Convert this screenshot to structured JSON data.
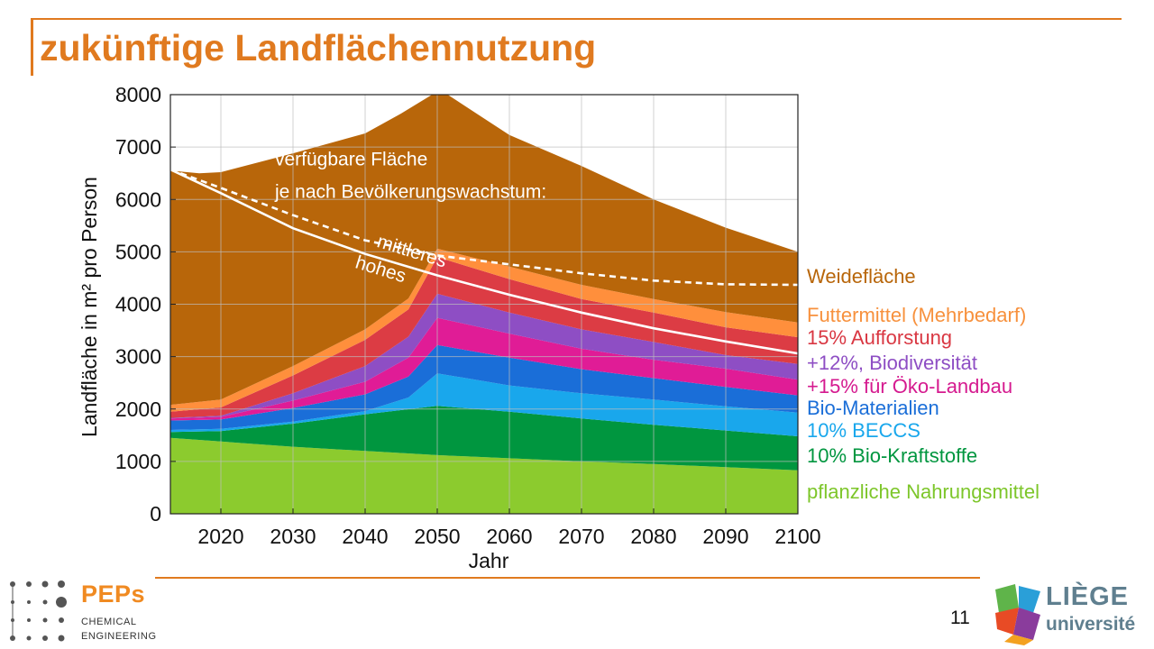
{
  "slide": {
    "title": "zukünftige Landflächennutzung",
    "page_number": "11"
  },
  "logos": {
    "peps": {
      "name": "PEPs",
      "line1": "CHEMICAL",
      "line2": "ENGINEERING"
    },
    "uliege": {
      "name": "LIÈGE",
      "sub": "université"
    }
  },
  "chart_data": {
    "type": "area",
    "xlabel": "Jahr",
    "ylabel": "Landfläche in m² pro Person",
    "xlim": [
      2013,
      2100
    ],
    "ylim": [
      0,
      8000
    ],
    "x_ticks": [
      2020,
      2030,
      2040,
      2050,
      2060,
      2070,
      2080,
      2090,
      2100
    ],
    "y_ticks": [
      0,
      1000,
      2000,
      3000,
      4000,
      5000,
      6000,
      7000,
      8000
    ],
    "grid": true,
    "stack_boundaries": [
      {
        "name": "pflanzliche Nahrungsmittel",
        "color": "#8ccb2e",
        "points": [
          [
            2013,
            1450
          ],
          [
            2020,
            1380
          ],
          [
            2030,
            1280
          ],
          [
            2040,
            1200
          ],
          [
            2050,
            1120
          ],
          [
            2060,
            1060
          ],
          [
            2070,
            1000
          ],
          [
            2080,
            950
          ],
          [
            2090,
            890
          ],
          [
            2100,
            830
          ]
        ]
      },
      {
        "name": "10% Bio-Kraftstoffe",
        "color": "#00963f",
        "points": [
          [
            2013,
            1560
          ],
          [
            2020,
            1580
          ],
          [
            2030,
            1720
          ],
          [
            2040,
            1900
          ],
          [
            2050,
            2060
          ],
          [
            2060,
            1950
          ],
          [
            2070,
            1820
          ],
          [
            2080,
            1700
          ],
          [
            2090,
            1590
          ],
          [
            2100,
            1480
          ]
        ]
      },
      {
        "name": "10% BECCS",
        "color": "#19a7ec",
        "points": [
          [
            2013,
            1600
          ],
          [
            2020,
            1620
          ],
          [
            2030,
            1760
          ],
          [
            2040,
            1960
          ],
          [
            2046,
            2220
          ],
          [
            2050,
            2680
          ],
          [
            2060,
            2450
          ],
          [
            2070,
            2300
          ],
          [
            2080,
            2180
          ],
          [
            2090,
            2050
          ],
          [
            2100,
            1930
          ]
        ]
      },
      {
        "name": "Bio-Materialien",
        "color": "#1a6ed8",
        "points": [
          [
            2013,
            1780
          ],
          [
            2020,
            1800
          ],
          [
            2030,
            2020
          ],
          [
            2040,
            2280
          ],
          [
            2046,
            2620
          ],
          [
            2050,
            3220
          ],
          [
            2060,
            2980
          ],
          [
            2070,
            2760
          ],
          [
            2080,
            2590
          ],
          [
            2090,
            2420
          ],
          [
            2100,
            2260
          ]
        ]
      },
      {
        "name": "+15% für Öko-Landbau",
        "color": "#e01c96",
        "points": [
          [
            2013,
            1820
          ],
          [
            2020,
            1850
          ],
          [
            2030,
            2160
          ],
          [
            2040,
            2520
          ],
          [
            2046,
            2980
          ],
          [
            2050,
            3740
          ],
          [
            2060,
            3440
          ],
          [
            2070,
            3150
          ],
          [
            2080,
            2940
          ],
          [
            2090,
            2770
          ],
          [
            2100,
            2560
          ]
        ]
      },
      {
        "name": "+12%, Biodiversität",
        "color": "#8e4ec4",
        "points": [
          [
            2013,
            1830
          ],
          [
            2020,
            1870
          ],
          [
            2030,
            2300
          ],
          [
            2040,
            2820
          ],
          [
            2046,
            3380
          ],
          [
            2050,
            4200
          ],
          [
            2060,
            3840
          ],
          [
            2070,
            3520
          ],
          [
            2080,
            3280
          ],
          [
            2090,
            3030
          ],
          [
            2100,
            2860
          ]
        ]
      },
      {
        "name": "15% Aufforstung",
        "color": "#dc3c44",
        "points": [
          [
            2013,
            1950
          ],
          [
            2020,
            2030
          ],
          [
            2030,
            2640
          ],
          [
            2040,
            3320
          ],
          [
            2046,
            3900
          ],
          [
            2050,
            4900
          ],
          [
            2060,
            4480
          ],
          [
            2070,
            4100
          ],
          [
            2080,
            3840
          ],
          [
            2090,
            3560
          ],
          [
            2100,
            3370
          ]
        ]
      },
      {
        "name": "Futtermittel (Mehrbedarf)",
        "color": "#ff8f3c",
        "points": [
          [
            2013,
            2080
          ],
          [
            2020,
            2180
          ],
          [
            2030,
            2820
          ],
          [
            2040,
            3520
          ],
          [
            2046,
            4110
          ],
          [
            2050,
            5060
          ],
          [
            2060,
            4720
          ],
          [
            2070,
            4370
          ],
          [
            2080,
            4100
          ],
          [
            2090,
            3850
          ],
          [
            2100,
            3650
          ]
        ]
      },
      {
        "name": "Weidefläche",
        "color": "#b8660a",
        "points": [
          [
            2013,
            6550
          ],
          [
            2017,
            6500
          ],
          [
            2020,
            6520
          ],
          [
            2030,
            6880
          ],
          [
            2040,
            7260
          ],
          [
            2045,
            7640
          ],
          [
            2050,
            8060
          ],
          [
            2051,
            8040
          ],
          [
            2060,
            7230
          ],
          [
            2070,
            6640
          ],
          [
            2080,
            6000
          ],
          [
            2090,
            5460
          ],
          [
            2100,
            5000
          ]
        ]
      }
    ],
    "lines": [
      {
        "name": "mittleres",
        "style": "dashed",
        "color": "#ffffff",
        "points": [
          [
            2013,
            6570
          ],
          [
            2020,
            6220
          ],
          [
            2030,
            5700
          ],
          [
            2040,
            5220
          ],
          [
            2050,
            4930
          ],
          [
            2060,
            4760
          ],
          [
            2070,
            4590
          ],
          [
            2080,
            4450
          ],
          [
            2090,
            4380
          ],
          [
            2100,
            4370
          ]
        ]
      },
      {
        "name": "hohes",
        "style": "solid",
        "color": "#ffffff",
        "points": [
          [
            2013,
            6570
          ],
          [
            2020,
            6120
          ],
          [
            2030,
            5450
          ],
          [
            2040,
            4960
          ],
          [
            2050,
            4550
          ],
          [
            2060,
            4180
          ],
          [
            2070,
            3840
          ],
          [
            2080,
            3540
          ],
          [
            2090,
            3290
          ],
          [
            2100,
            3060
          ]
        ]
      }
    ],
    "annotations": [
      {
        "text": "verfügbare Fläche",
        "at": [
          2027.5,
          6650
        ]
      },
      {
        "text": "je nach Bevölkerungswachstum:",
        "at": [
          2027.5,
          6030
        ]
      },
      {
        "text": "mittleres",
        "at": [
          2041.5,
          5100
        ],
        "rotate": 17
      },
      {
        "text": "hohes",
        "at": [
          2038.5,
          4700
        ],
        "rotate": 17
      }
    ],
    "legend": [
      {
        "text": "Weidefläche",
        "color": "#b8660a"
      },
      {
        "text": "Futtermittel (Mehrbedarf)",
        "color": "#f7913d"
      },
      {
        "text": "15% Aufforstung",
        "color": "#d93742"
      },
      {
        "text": "+12%, Biodiversität",
        "color": "#8e4ec4"
      },
      {
        "text": "+15% für Öko-Landbau",
        "color": "#d51a8f"
      },
      {
        "text": "Bio-Materialien",
        "color": "#1a6ed8"
      },
      {
        "text": "10% BECCS",
        "color": "#19a7ec"
      },
      {
        "text": "10% Bio-Kraftstoffe",
        "color": "#00963f"
      },
      {
        "text": "pflanzliche Nahrungsmittel",
        "color": "#7dc62a"
      }
    ],
    "legend_position": "right"
  }
}
